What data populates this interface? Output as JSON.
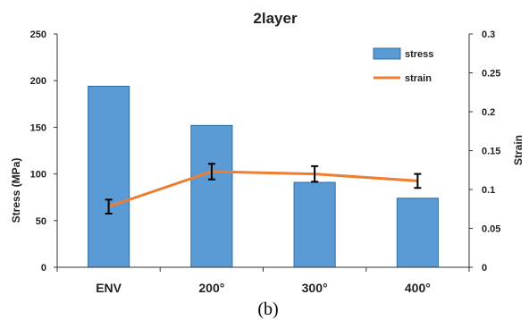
{
  "caption": "(b)",
  "chart_data": {
    "type": "bar",
    "title": "2layer",
    "categories": [
      "ENV",
      "200°",
      "300°",
      "400°"
    ],
    "ylabel": "Stress (MPa)",
    "y2label": "Strain",
    "ylim": [
      0,
      250
    ],
    "y2lim": [
      0,
      0.3
    ],
    "yticks": [
      "0",
      "50",
      "100",
      "150",
      "200",
      "250"
    ],
    "y2ticks": [
      "0",
      "0.05",
      "0.1",
      "0.15",
      "0.2",
      "0.25",
      "0.3"
    ],
    "series": [
      {
        "name": "stress",
        "type": "bar",
        "axis": "left",
        "color": "#5b9bd5",
        "values": [
          194,
          152,
          91,
          74
        ]
      },
      {
        "name": "strain",
        "type": "line",
        "axis": "right",
        "color": "#ed7d31",
        "values": [
          0.078,
          0.123,
          0.12,
          0.111
        ],
        "error": [
          0.009,
          0.01,
          0.01,
          0.009
        ]
      }
    ],
    "legend_position": "top-right",
    "grid": false
  }
}
